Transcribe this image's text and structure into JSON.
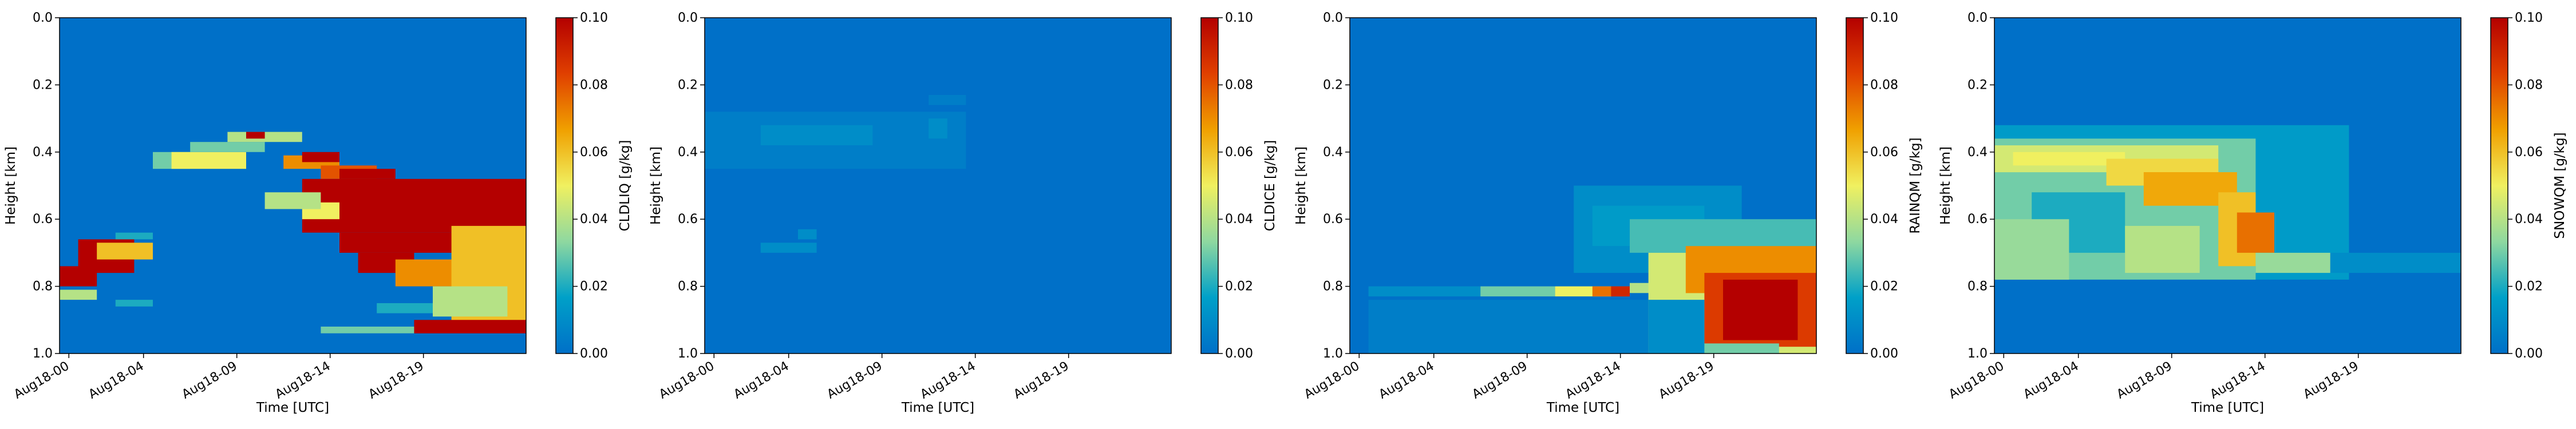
{
  "figure": {
    "colormap": [
      "#0070c8",
      "#00a0c8",
      "#8ed8a0",
      "#f0f060",
      "#f0a000",
      "#e04000",
      "#b40000"
    ]
  },
  "chart_data": [
    {
      "type": "heatmap",
      "title": "",
      "xlabel": "Time [UTC]",
      "ylabel": "Height [km]",
      "colorbar_label": "CLDLIQ [g/kg]",
      "x_tick_labels": [
        "Aug18-00",
        "Aug18-04",
        "Aug18-09",
        "Aug18-14",
        "Aug18-19"
      ],
      "x_ticks": [
        0,
        4,
        9,
        14,
        19
      ],
      "xlim": [
        -0.5,
        24.5
      ],
      "y_tick_labels": [
        "0.0",
        "0.2",
        "0.4",
        "0.6",
        "0.8",
        "1.0"
      ],
      "y_ticks": [
        0,
        0.2,
        0.4,
        0.6,
        0.8,
        1.0
      ],
      "ylim": [
        1.0,
        0.0
      ],
      "colorbar_ticks": [
        "0.00",
        "0.02",
        "0.04",
        "0.06",
        "0.08",
        "0.10"
      ],
      "vmin": 0,
      "vmax": 0.1,
      "n_levels": 20,
      "patches": [
        {
          "t": [
            0,
            1
          ],
          "z": [
            0.74,
            0.8
          ],
          "v": 0.1
        },
        {
          "t": [
            0,
            1
          ],
          "z": [
            0.81,
            0.84
          ],
          "v": 0.04
        },
        {
          "t": [
            1,
            3
          ],
          "z": [
            0.66,
            0.76
          ],
          "v": 0.1
        },
        {
          "t": [
            2,
            4
          ],
          "z": [
            0.67,
            0.72
          ],
          "v": 0.06
        },
        {
          "t": [
            3,
            4
          ],
          "z": [
            0.64,
            0.66
          ],
          "v": 0.02
        },
        {
          "t": [
            3,
            4
          ],
          "z": [
            0.84,
            0.86
          ],
          "v": 0.02
        },
        {
          "t": [
            5,
            6
          ],
          "z": [
            0.4,
            0.45
          ],
          "v": 0.03
        },
        {
          "t": [
            6,
            9
          ],
          "z": [
            0.4,
            0.45
          ],
          "v": 0.05
        },
        {
          "t": [
            7,
            10
          ],
          "z": [
            0.37,
            0.4
          ],
          "v": 0.03
        },
        {
          "t": [
            9,
            12
          ],
          "z": [
            0.34,
            0.37
          ],
          "v": 0.04
        },
        {
          "t": [
            10,
            10
          ],
          "z": [
            0.34,
            0.36
          ],
          "v": 0.1
        },
        {
          "t": [
            12,
            14
          ],
          "z": [
            0.41,
            0.45
          ],
          "v": 0.07
        },
        {
          "t": [
            13,
            14
          ],
          "z": [
            0.4,
            0.43
          ],
          "v": 0.1
        },
        {
          "t": [
            14,
            16
          ],
          "z": [
            0.44,
            0.48
          ],
          "v": 0.08
        },
        {
          "t": [
            15,
            17
          ],
          "z": [
            0.45,
            0.48
          ],
          "v": 0.1
        },
        {
          "t": [
            13,
            24
          ],
          "z": [
            0.48,
            0.64
          ],
          "v": 0.1
        },
        {
          "t": [
            13,
            14
          ],
          "z": [
            0.55,
            0.6
          ],
          "v": 0.05
        },
        {
          "t": [
            11,
            13
          ],
          "z": [
            0.52,
            0.57
          ],
          "v": 0.04
        },
        {
          "t": [
            15,
            21
          ],
          "z": [
            0.64,
            0.7
          ],
          "v": 0.1
        },
        {
          "t": [
            16,
            18
          ],
          "z": [
            0.7,
            0.76
          ],
          "v": 0.1
        },
        {
          "t": [
            18,
            21
          ],
          "z": [
            0.72,
            0.8
          ],
          "v": 0.07
        },
        {
          "t": [
            21,
            24
          ],
          "z": [
            0.62,
            0.92
          ],
          "v": 0.06
        },
        {
          "t": [
            20,
            23
          ],
          "z": [
            0.8,
            0.89
          ],
          "v": 0.04
        },
        {
          "t": [
            17,
            19
          ],
          "z": [
            0.85,
            0.88
          ],
          "v": 0.02
        },
        {
          "t": [
            19,
            24
          ],
          "z": [
            0.9,
            0.94
          ],
          "v": 0.1
        },
        {
          "t": [
            14,
            18
          ],
          "z": [
            0.92,
            0.94
          ],
          "v": 0.03
        }
      ]
    },
    {
      "type": "heatmap",
      "title": "",
      "xlabel": "Time [UTC]",
      "ylabel": "Height [km]",
      "colorbar_label": "CLDICE [g/kg]",
      "x_tick_labels": [
        "Aug18-00",
        "Aug18-04",
        "Aug18-09",
        "Aug18-14",
        "Aug18-19"
      ],
      "x_ticks": [
        0,
        4,
        9,
        14,
        19
      ],
      "xlim": [
        -0.5,
        24.5
      ],
      "y_tick_labels": [
        "0.0",
        "0.2",
        "0.4",
        "0.6",
        "0.8",
        "1.0"
      ],
      "y_ticks": [
        0,
        0.2,
        0.4,
        0.6,
        0.8,
        1.0
      ],
      "ylim": [
        1.0,
        0.0
      ],
      "colorbar_ticks": [
        "0.00",
        "0.02",
        "0.04",
        "0.06",
        "0.08",
        "0.10"
      ],
      "vmin": 0,
      "vmax": 0.1,
      "n_levels": 20,
      "patches": [
        {
          "t": [
            0,
            13
          ],
          "z": [
            0.28,
            0.45
          ],
          "v": 0.004
        },
        {
          "t": [
            2,
            10
          ],
          "z": [
            0.32,
            0.4
          ],
          "v": 0.007
        },
        {
          "t": [
            3,
            8
          ],
          "z": [
            0.32,
            0.38
          ],
          "v": 0.01
        },
        {
          "t": [
            12,
            12
          ],
          "z": [
            0.3,
            0.36
          ],
          "v": 0.012
        },
        {
          "t": [
            12,
            13
          ],
          "z": [
            0.23,
            0.26
          ],
          "v": 0.006
        },
        {
          "t": [
            3,
            5
          ],
          "z": [
            0.67,
            0.7
          ],
          "v": 0.008
        },
        {
          "t": [
            5,
            5
          ],
          "z": [
            0.63,
            0.66
          ],
          "v": 0.008
        }
      ]
    },
    {
      "type": "heatmap",
      "title": "",
      "xlabel": "Time [UTC]",
      "ylabel": "Height [km]",
      "colorbar_label": "RAINQM [g/kg]",
      "x_tick_labels": [
        "Aug18-00",
        "Aug18-04",
        "Aug18-09",
        "Aug18-14",
        "Aug18-19"
      ],
      "x_ticks": [
        0,
        4,
        9,
        14,
        19
      ],
      "xlim": [
        -0.5,
        24.5
      ],
      "y_tick_labels": [
        "0.0",
        "0.2",
        "0.4",
        "0.6",
        "0.8",
        "1.0"
      ],
      "y_ticks": [
        0,
        0.2,
        0.4,
        0.6,
        0.8,
        1.0
      ],
      "ylim": [
        1.0,
        0.0
      ],
      "colorbar_ticks": [
        "0.00",
        "0.02",
        "0.04",
        "0.06",
        "0.08",
        "0.10"
      ],
      "vmin": 0,
      "vmax": 0.1,
      "n_levels": 20,
      "patches": [
        {
          "t": [
            1,
            15
          ],
          "z": [
            0.84,
            1.0
          ],
          "v": 0.004
        },
        {
          "t": [
            1,
            6
          ],
          "z": [
            0.8,
            0.83
          ],
          "v": 0.012
        },
        {
          "t": [
            7,
            10
          ],
          "z": [
            0.8,
            0.83
          ],
          "v": 0.03
        },
        {
          "t": [
            11,
            13
          ],
          "z": [
            0.8,
            0.83
          ],
          "v": 0.05
        },
        {
          "t": [
            13,
            14
          ],
          "z": [
            0.8,
            0.83
          ],
          "v": 0.075
        },
        {
          "t": [
            14,
            14
          ],
          "z": [
            0.8,
            0.83
          ],
          "v": 0.09
        },
        {
          "t": [
            15,
            16
          ],
          "z": [
            0.79,
            0.82
          ],
          "v": 0.04
        },
        {
          "t": [
            12,
            20
          ],
          "z": [
            0.5,
            0.76
          ],
          "v": 0.008
        },
        {
          "t": [
            13,
            18
          ],
          "z": [
            0.56,
            0.68
          ],
          "v": 0.016
        },
        {
          "t": [
            15,
            24
          ],
          "z": [
            0.6,
            0.7
          ],
          "v": 0.025
        },
        {
          "t": [
            16,
            24
          ],
          "z": [
            0.7,
            1.0
          ],
          "v": 0.045
        },
        {
          "t": [
            18,
            24
          ],
          "z": [
            0.68,
            0.82
          ],
          "v": 0.07
        },
        {
          "t": [
            19,
            24
          ],
          "z": [
            0.76,
            0.98
          ],
          "v": 0.085
        },
        {
          "t": [
            20,
            23
          ],
          "z": [
            0.78,
            0.96
          ],
          "v": 0.1
        },
        {
          "t": [
            19,
            22
          ],
          "z": [
            0.97,
            1.0
          ],
          "v": 0.03
        },
        {
          "t": [
            16,
            18
          ],
          "z": [
            0.84,
            1.0
          ],
          "v": 0.008
        }
      ]
    },
    {
      "type": "heatmap",
      "title": "",
      "xlabel": "Time [UTC]",
      "ylabel": "Height [km]",
      "colorbar_label": "SNOWQM [g/kg]",
      "x_tick_labels": [
        "Aug18-00",
        "Aug18-04",
        "Aug18-09",
        "Aug18-14",
        "Aug18-19"
      ],
      "x_ticks": [
        0,
        4,
        9,
        14,
        19
      ],
      "xlim": [
        -0.5,
        24.5
      ],
      "y_tick_labels": [
        "0.0",
        "0.2",
        "0.4",
        "0.6",
        "0.8",
        "1.0"
      ],
      "y_ticks": [
        0,
        0.2,
        0.4,
        0.6,
        0.8,
        1.0
      ],
      "ylim": [
        1.0,
        0.0
      ],
      "colorbar_ticks": [
        "0.00",
        "0.02",
        "0.04",
        "0.06",
        "0.08",
        "0.10"
      ],
      "vmin": 0,
      "vmax": 0.1,
      "n_levels": 20,
      "patches": [
        {
          "t": [
            0,
            18
          ],
          "z": [
            0.32,
            0.78
          ],
          "v": 0.015
        },
        {
          "t": [
            0,
            13
          ],
          "z": [
            0.36,
            0.78
          ],
          "v": 0.03
        },
        {
          "t": [
            0,
            11
          ],
          "z": [
            0.38,
            0.46
          ],
          "v": 0.045
        },
        {
          "t": [
            1,
            6
          ],
          "z": [
            0.4,
            0.44
          ],
          "v": 0.05
        },
        {
          "t": [
            6,
            11
          ],
          "z": [
            0.42,
            0.5
          ],
          "v": 0.055
        },
        {
          "t": [
            8,
            12
          ],
          "z": [
            0.46,
            0.56
          ],
          "v": 0.065
        },
        {
          "t": [
            12,
            13
          ],
          "z": [
            0.52,
            0.74
          ],
          "v": 0.06
        },
        {
          "t": [
            13,
            14
          ],
          "z": [
            0.58,
            0.7
          ],
          "v": 0.075
        },
        {
          "t": [
            2,
            6
          ],
          "z": [
            0.52,
            0.7
          ],
          "v": 0.02
        },
        {
          "t": [
            0,
            3
          ],
          "z": [
            0.6,
            0.78
          ],
          "v": 0.035
        },
        {
          "t": [
            7,
            10
          ],
          "z": [
            0.62,
            0.76
          ],
          "v": 0.04
        },
        {
          "t": [
            14,
            17
          ],
          "z": [
            0.7,
            0.76
          ],
          "v": 0.035
        },
        {
          "t": [
            18,
            24
          ],
          "z": [
            0.7,
            0.76
          ],
          "v": 0.008
        }
      ]
    }
  ]
}
